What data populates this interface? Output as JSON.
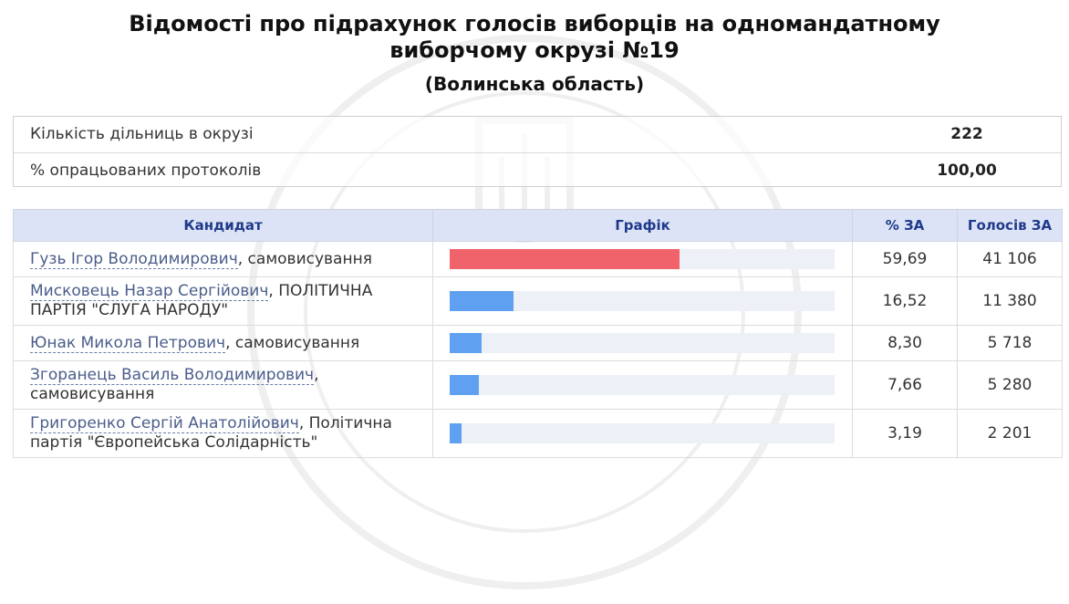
{
  "page": {
    "title_line1": "Відомості про підрахунок голосів виборців на одномандатному",
    "title_line2": "виборчому окрузі №19",
    "region": "(Волинська область)"
  },
  "summary": [
    {
      "label": "Кількість дільниць в окрузі",
      "value": "222"
    },
    {
      "label": "% опрацьованих протоколів",
      "value": "100,00"
    }
  ],
  "table": {
    "headers": {
      "candidate": "Кандидат",
      "chart": "Графік",
      "percent": "% ЗА",
      "votes": "Голосів ЗА"
    },
    "rows": [
      {
        "name": "Гузь Ігор Володимирович",
        "party": ", самовисування",
        "percent": "59,69",
        "votes": "41 106",
        "share": 0.5969,
        "bar_color": "#f1636a"
      },
      {
        "name": "Мисковець Назар Сергійович",
        "party": ", ПОЛІТИЧНА ПАРТІЯ \"СЛУГА НАРОДУ\"",
        "percent": "16,52",
        "votes": "11 380",
        "share": 0.1652,
        "bar_color": "#5fa0f0"
      },
      {
        "name": "Юнак Микола Петрович",
        "party": ", самовисування",
        "percent": "8,30",
        "votes": "5 718",
        "share": 0.083,
        "bar_color": "#5fa0f0"
      },
      {
        "name": "Згоранець Василь Володимирович",
        "party": ", самовисування",
        "percent": "7,66",
        "votes": "5 280",
        "share": 0.0766,
        "bar_color": "#5fa0f0"
      },
      {
        "name": "Григоренко Сергій Анатолійович",
        "party": ", Політична партія \"Європейська Солідарність\"",
        "percent": "3,19",
        "votes": "2 201",
        "share": 0.0319,
        "bar_color": "#5fa0f0"
      }
    ]
  },
  "colors": {
    "header_bg": "#dde3f6",
    "header_text": "#1f3a8a",
    "bar_track": "#eef0f8"
  }
}
